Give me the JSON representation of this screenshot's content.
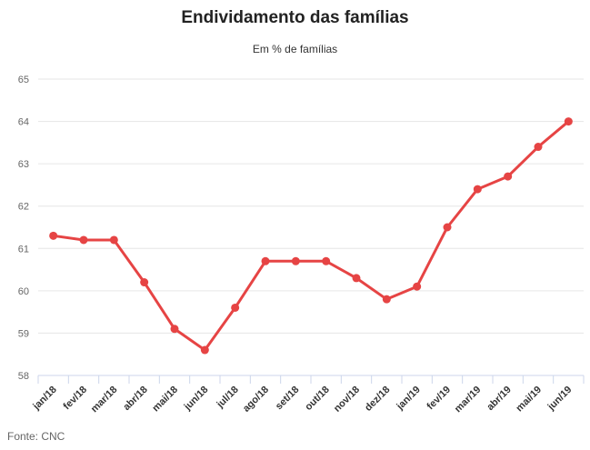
{
  "chart_data": {
    "type": "line",
    "title": "Endividamento das famílias",
    "subtitle": "Em % de famílias",
    "source": "Fonte: CNC",
    "categories": [
      "jan/18",
      "fev/18",
      "mar/18",
      "abr/18",
      "mai/18",
      "jun/18",
      "jul/18",
      "ago/18",
      "set/18",
      "out/18",
      "nov/18",
      "dez/18",
      "jan/19",
      "fev/19",
      "mar/19",
      "abr/19",
      "mai/19",
      "jun/19"
    ],
    "values": [
      61.3,
      61.2,
      61.2,
      60.2,
      59.1,
      58.6,
      59.6,
      60.7,
      60.7,
      60.7,
      60.3,
      59.8,
      60.1,
      61.5,
      62.4,
      62.7,
      63.4,
      64.0
    ],
    "xlabel": "",
    "ylabel": "",
    "ylim": [
      58,
      65
    ],
    "ytick_step": 1,
    "grid": true,
    "legend": false,
    "colors": {
      "line": "#e64444",
      "marker": "#e64444",
      "gridline": "#e6e6e6",
      "axis": "#ccd6eb",
      "y_label": "#666666",
      "x_label": "#333333",
      "title": "#222222",
      "subtitle": "#333333",
      "source": "#666666"
    }
  }
}
